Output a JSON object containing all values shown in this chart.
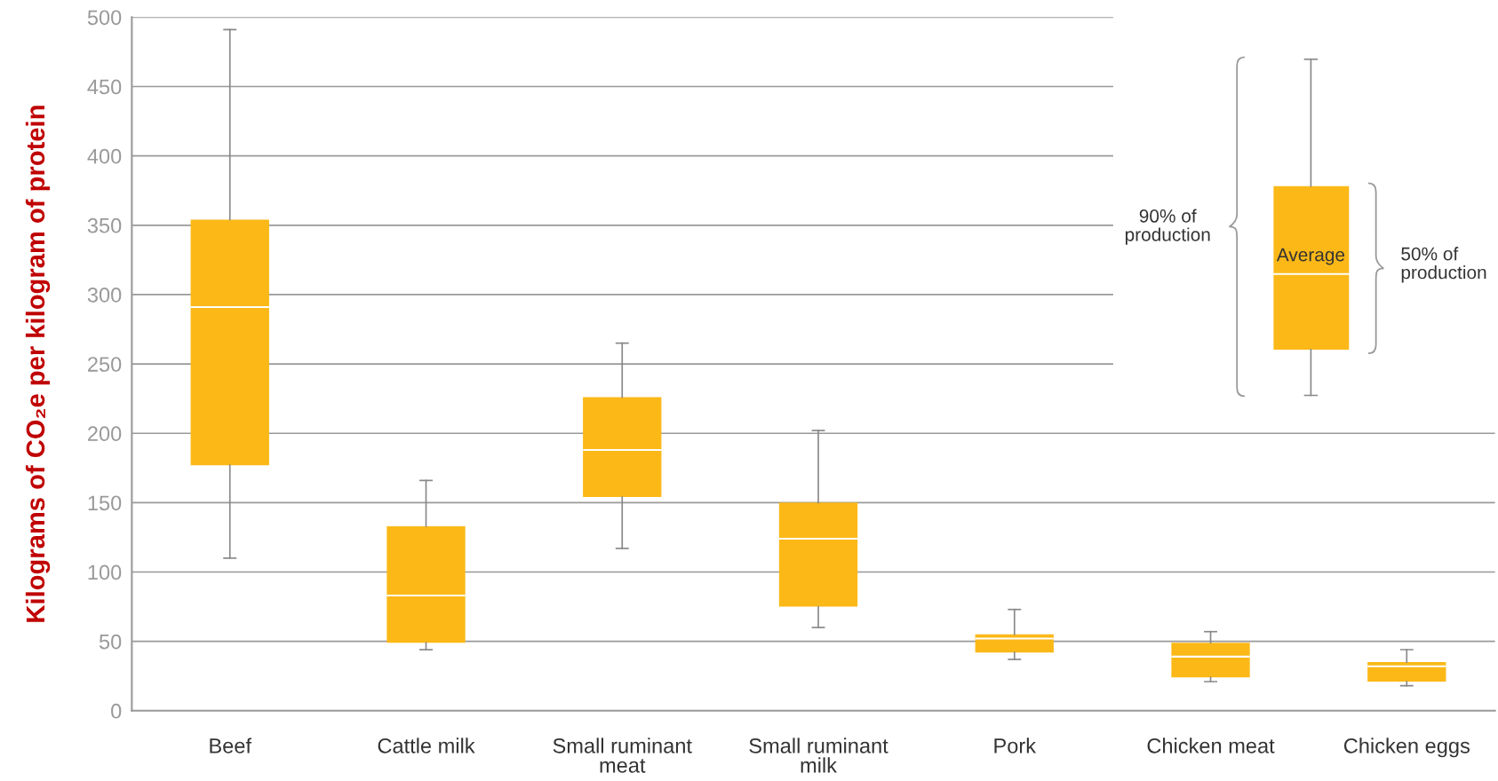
{
  "chart_data": {
    "type": "box",
    "ylabel": "Kilograms of CO₂e per kilogram of protein",
    "categories": [
      "Beef",
      "Cattle milk",
      "Small ruminant\nmeat",
      "Small ruminant\nmilk",
      "Pork",
      "Chicken meat",
      "Chicken eggs"
    ],
    "color": "#fbb817",
    "boxes": [
      {
        "low": 110,
        "q1": 177,
        "median": 291,
        "q3": 354,
        "high": 491
      },
      {
        "low": 44,
        "q1": 49,
        "median": 83,
        "q3": 133,
        "high": 166
      },
      {
        "low": 117,
        "q1": 154,
        "median": 188,
        "q3": 226,
        "high": 265
      },
      {
        "low": 60,
        "q1": 75,
        "median": 124,
        "q3": 150,
        "high": 202
      },
      {
        "low": 37,
        "q1": 42,
        "median": 52,
        "q3": 55,
        "high": 73
      },
      {
        "low": 21,
        "q1": 24,
        "median": 39,
        "q3": 49,
        "high": 57
      },
      {
        "low": 18,
        "q1": 21,
        "median": 32,
        "q3": 35,
        "high": 44
      }
    ],
    "ylim": [
      0,
      500
    ],
    "yticks": [
      0,
      50,
      100,
      150,
      200,
      250,
      300,
      350,
      400,
      450,
      500
    ],
    "grid": "y",
    "annotations": [
      "90% of\nproduction",
      "Average",
      "50% of\nproduction"
    ]
  }
}
